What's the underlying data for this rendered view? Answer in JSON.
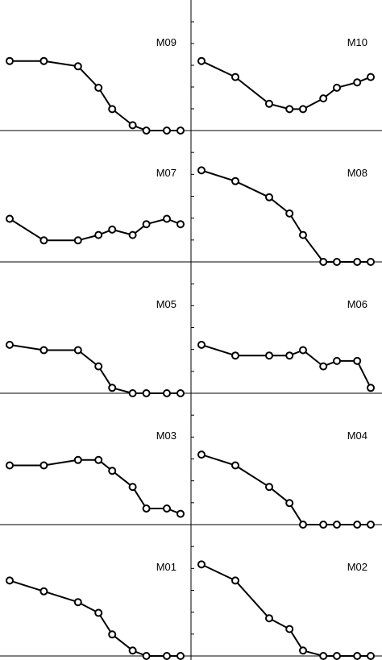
{
  "chart_data": {
    "type": "line",
    "grid": "2 columns x 5 rows of small-multiple panels",
    "x": [
      0,
      1,
      2,
      2.6,
      3,
      3.6,
      4,
      4.6,
      5
    ],
    "ylim": [
      0,
      1
    ],
    "panels": [
      {
        "label": "M09",
        "values": [
          0.65,
          0.65,
          0.6,
          0.4,
          0.2,
          0.05,
          0.0,
          0.0,
          0.0
        ]
      },
      {
        "label": "M10",
        "values": [
          0.65,
          0.5,
          0.25,
          0.2,
          0.2,
          0.3,
          0.4,
          0.45,
          0.5
        ]
      },
      {
        "label": "M07",
        "values": [
          0.4,
          0.2,
          0.2,
          0.25,
          0.3,
          0.25,
          0.35,
          0.4,
          0.35
        ]
      },
      {
        "label": "M08",
        "values": [
          0.85,
          0.75,
          0.6,
          0.45,
          0.25,
          0.0,
          0.0,
          0.0,
          0.0
        ]
      },
      {
        "label": "M05",
        "values": [
          0.45,
          0.4,
          0.4,
          0.25,
          0.05,
          0.0,
          0.0,
          0.0,
          0.0
        ]
      },
      {
        "label": "M06",
        "values": [
          0.45,
          0.35,
          0.35,
          0.35,
          0.4,
          0.25,
          0.3,
          0.3,
          0.05
        ]
      },
      {
        "label": "M03",
        "values": [
          0.55,
          0.55,
          0.6,
          0.6,
          0.5,
          0.35,
          0.15,
          0.15,
          0.1
        ]
      },
      {
        "label": "M04",
        "values": [
          0.65,
          0.55,
          0.35,
          0.2,
          0.0,
          0.0,
          0.0,
          0.0,
          0.0
        ]
      },
      {
        "label": "M01",
        "values": [
          0.7,
          0.6,
          0.5,
          0.4,
          0.2,
          0.05,
          0.0,
          0.0,
          0.0
        ]
      },
      {
        "label": "M02",
        "values": [
          0.85,
          0.7,
          0.35,
          0.25,
          0.05,
          0.0,
          0.0,
          0.0,
          0.0
        ]
      }
    ],
    "colors": {
      "line": "#000000",
      "marker_fill": "#ffffff",
      "axis": "#000000"
    }
  }
}
